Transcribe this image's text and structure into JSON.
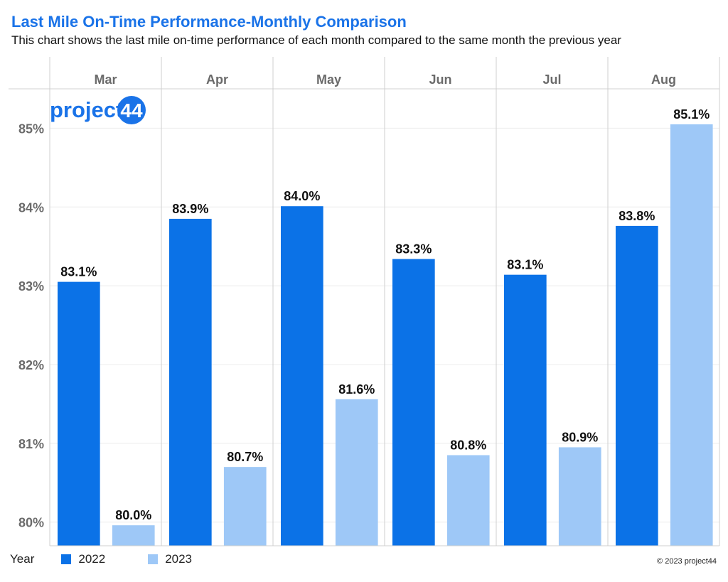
{
  "header": {
    "title": "Last Mile On-Time Performance-Monthly Comparison",
    "subtitle": "This chart shows the last mile on-time performance of each month compared to the same month the previous year"
  },
  "logo": {
    "text_part1": "project",
    "text_part2": "44"
  },
  "legend": {
    "title": "Year",
    "items": [
      {
        "label": "2022",
        "color": "#0b72e7"
      },
      {
        "label": "2023",
        "color": "#9ec8f7"
      }
    ]
  },
  "footer": {
    "copyright": "© 2023 project44"
  },
  "colors": {
    "brand": "#1a73e8",
    "series_2022": "#0b72e7",
    "series_2023": "#9ec8f7"
  },
  "chart_data": {
    "type": "bar",
    "title": "Last Mile On-Time Performance-Monthly Comparison",
    "subtitle": "This chart shows the last mile on-time performance of each month compared to the same month the previous year",
    "categories": [
      "Mar",
      "Apr",
      "May",
      "Jun",
      "Jul",
      "Aug"
    ],
    "series": [
      {
        "name": "2022",
        "values": [
          83.05,
          83.85,
          84.01,
          83.34,
          83.14,
          83.76
        ],
        "labels": [
          "83.1%",
          "83.9%",
          "84.0%",
          "83.3%",
          "83.1%",
          "83.8%"
        ]
      },
      {
        "name": "2023",
        "values": [
          79.96,
          80.7,
          81.56,
          80.85,
          80.95,
          85.05
        ],
        "labels": [
          "80.0%",
          "80.7%",
          "81.6%",
          "80.8%",
          "80.9%",
          "85.1%"
        ]
      }
    ],
    "yticks": [
      "80%",
      "81%",
      "82%",
      "83%",
      "84%",
      "85%"
    ],
    "ytick_values": [
      80,
      81,
      82,
      83,
      84,
      85
    ],
    "ylim": [
      79.7,
      85.5
    ],
    "xaxis_position": "top",
    "grid": true,
    "legend_position": "bottom-left"
  }
}
